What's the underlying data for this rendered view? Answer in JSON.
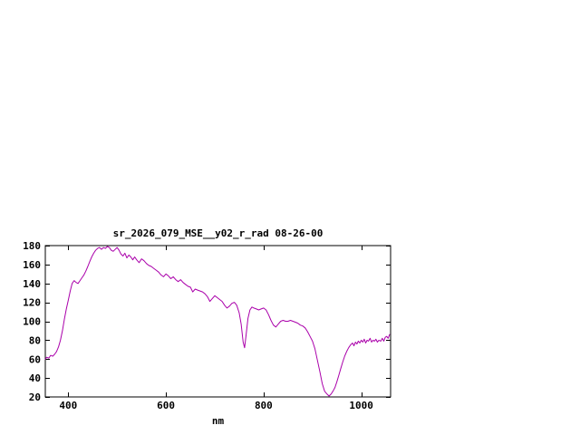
{
  "window": {
    "background": "#ffffff"
  },
  "chart_data": {
    "type": "line",
    "title": "sr_2026_079_MSE__y02_r_rad 08-26-00",
    "xlabel": "nm",
    "ylabel": "",
    "xlim": [
      353,
      1060
    ],
    "ylim": [
      20,
      180
    ],
    "x_ticks": [
      400,
      600,
      800,
      1000
    ],
    "y_ticks": [
      20,
      40,
      60,
      80,
      100,
      120,
      140,
      160,
      180
    ],
    "grid": false,
    "legend": "none",
    "line_color": "#aa00aa",
    "axis_color": "#000000",
    "series": [
      {
        "name": "sr_2026_079_MSE__y02_r_rad",
        "points": [
          [
            353,
            60
          ],
          [
            356,
            62
          ],
          [
            360,
            61
          ],
          [
            364,
            64
          ],
          [
            368,
            63
          ],
          [
            372,
            65
          ],
          [
            376,
            68
          ],
          [
            380,
            73
          ],
          [
            384,
            80
          ],
          [
            388,
            90
          ],
          [
            392,
            102
          ],
          [
            396,
            113
          ],
          [
            400,
            122
          ],
          [
            404,
            132
          ],
          [
            408,
            140
          ],
          [
            412,
            143
          ],
          [
            416,
            141
          ],
          [
            420,
            140
          ],
          [
            424,
            143
          ],
          [
            428,
            146
          ],
          [
            432,
            149
          ],
          [
            436,
            153
          ],
          [
            440,
            158
          ],
          [
            444,
            163
          ],
          [
            448,
            168
          ],
          [
            452,
            172
          ],
          [
            456,
            175
          ],
          [
            460,
            177
          ],
          [
            464,
            178
          ],
          [
            468,
            176
          ],
          [
            472,
            178
          ],
          [
            476,
            177
          ],
          [
            480,
            179
          ],
          [
            484,
            178
          ],
          [
            488,
            175
          ],
          [
            492,
            174
          ],
          [
            496,
            176
          ],
          [
            500,
            178
          ],
          [
            504,
            175
          ],
          [
            508,
            171
          ],
          [
            512,
            169
          ],
          [
            516,
            172
          ],
          [
            520,
            167
          ],
          [
            524,
            170
          ],
          [
            528,
            168
          ],
          [
            532,
            165
          ],
          [
            536,
            168
          ],
          [
            540,
            165
          ],
          [
            545,
            162
          ],
          [
            550,
            166
          ],
          [
            555,
            164
          ],
          [
            560,
            161
          ],
          [
            565,
            159
          ],
          [
            570,
            158
          ],
          [
            575,
            156
          ],
          [
            580,
            154
          ],
          [
            585,
            152
          ],
          [
            590,
            149
          ],
          [
            595,
            147
          ],
          [
            600,
            150
          ],
          [
            605,
            148
          ],
          [
            610,
            145
          ],
          [
            615,
            147
          ],
          [
            620,
            144
          ],
          [
            625,
            142
          ],
          [
            630,
            144
          ],
          [
            635,
            141
          ],
          [
            640,
            139
          ],
          [
            645,
            137
          ],
          [
            650,
            136
          ],
          [
            655,
            131
          ],
          [
            660,
            134
          ],
          [
            665,
            133
          ],
          [
            670,
            132
          ],
          [
            675,
            131
          ],
          [
            680,
            129
          ],
          [
            685,
            126
          ],
          [
            690,
            121
          ],
          [
            695,
            124
          ],
          [
            700,
            127
          ],
          [
            705,
            125
          ],
          [
            710,
            123
          ],
          [
            715,
            121
          ],
          [
            720,
            117
          ],
          [
            725,
            114
          ],
          [
            730,
            116
          ],
          [
            735,
            119
          ],
          [
            740,
            120
          ],
          [
            745,
            117
          ],
          [
            750,
            109
          ],
          [
            754,
            97
          ],
          [
            758,
            78
          ],
          [
            761,
            72
          ],
          [
            764,
            85
          ],
          [
            768,
            103
          ],
          [
            772,
            112
          ],
          [
            776,
            115
          ],
          [
            780,
            114
          ],
          [
            785,
            113
          ],
          [
            790,
            112
          ],
          [
            795,
            113
          ],
          [
            800,
            114
          ],
          [
            805,
            112
          ],
          [
            810,
            107
          ],
          [
            815,
            101
          ],
          [
            820,
            96
          ],
          [
            825,
            94
          ],
          [
            830,
            97
          ],
          [
            835,
            100
          ],
          [
            840,
            101
          ],
          [
            845,
            100
          ],
          [
            850,
            100
          ],
          [
            855,
            101
          ],
          [
            860,
            100
          ],
          [
            865,
            99
          ],
          [
            870,
            98
          ],
          [
            875,
            96
          ],
          [
            880,
            95
          ],
          [
            885,
            93
          ],
          [
            890,
            89
          ],
          [
            895,
            84
          ],
          [
            900,
            79
          ],
          [
            905,
            71
          ],
          [
            910,
            59
          ],
          [
            915,
            47
          ],
          [
            920,
            34
          ],
          [
            925,
            26
          ],
          [
            930,
            23
          ],
          [
            934,
            21
          ],
          [
            938,
            23
          ],
          [
            942,
            26
          ],
          [
            946,
            30
          ],
          [
            950,
            36
          ],
          [
            954,
            43
          ],
          [
            958,
            50
          ],
          [
            962,
            57
          ],
          [
            966,
            63
          ],
          [
            970,
            68
          ],
          [
            974,
            72
          ],
          [
            978,
            75
          ],
          [
            982,
            77
          ],
          [
            985,
            74
          ],
          [
            988,
            78
          ],
          [
            991,
            76
          ],
          [
            994,
            79
          ],
          [
            997,
            77
          ],
          [
            1000,
            80
          ],
          [
            1003,
            78
          ],
          [
            1006,
            81
          ],
          [
            1009,
            77
          ],
          [
            1012,
            80
          ],
          [
            1015,
            79
          ],
          [
            1018,
            82
          ],
          [
            1021,
            78
          ],
          [
            1024,
            80
          ],
          [
            1027,
            79
          ],
          [
            1030,
            81
          ],
          [
            1033,
            78
          ],
          [
            1036,
            80
          ],
          [
            1040,
            79
          ],
          [
            1043,
            82
          ],
          [
            1046,
            79
          ],
          [
            1049,
            83
          ],
          [
            1052,
            84
          ],
          [
            1055,
            82
          ],
          [
            1058,
            86
          ]
        ]
      }
    ]
  }
}
